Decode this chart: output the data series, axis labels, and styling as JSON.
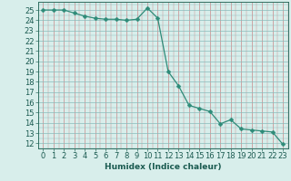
{
  "x": [
    0,
    1,
    2,
    3,
    4,
    5,
    6,
    7,
    8,
    9,
    10,
    11,
    12,
    13,
    14,
    15,
    16,
    17,
    18,
    19,
    20,
    21,
    22,
    23
  ],
  "y": [
    25,
    25,
    25,
    24.7,
    24.4,
    24.2,
    24.1,
    24.1,
    24.0,
    24.1,
    25.2,
    24.2,
    19.0,
    17.6,
    15.7,
    15.4,
    15.1,
    13.9,
    14.3,
    13.4,
    13.3,
    13.2,
    13.1,
    11.9
  ],
  "line_color": "#2e8b78",
  "marker": "D",
  "marker_size": 2.5,
  "bg_color": "#d8eeeb",
  "grid_major_color": "#c8a0a0",
  "grid_minor_color": "#b8d8d4",
  "xlabel": "Humidex (Indice chaleur)",
  "ylabel_ticks": [
    12,
    13,
    14,
    15,
    16,
    17,
    18,
    19,
    20,
    21,
    22,
    23,
    24,
    25
  ],
  "ylim": [
    11.5,
    25.8
  ],
  "xlim": [
    -0.5,
    23.5
  ],
  "xlabel_fontsize": 6.5,
  "tick_fontsize": 6,
  "tick_color": "#2e6e60",
  "label_color": "#1a5a50"
}
